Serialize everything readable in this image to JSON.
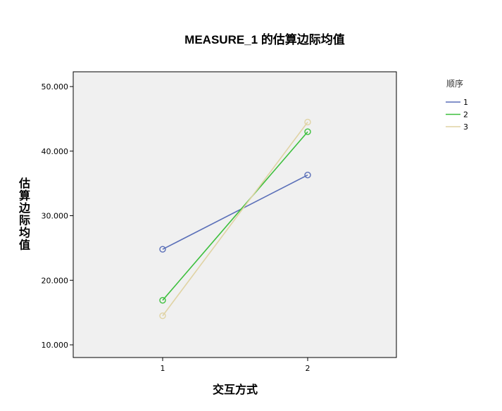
{
  "chart_data": {
    "type": "line",
    "title": "MEASURE_1 的估算边际均值",
    "xlabel": "交互方式",
    "ylabel": "估算边际均值",
    "categories": [
      "1",
      "2"
    ],
    "y_ticks": [
      "10.000",
      "20.000",
      "30.000",
      "40.000",
      "50.000"
    ],
    "ylim": [
      10,
      50
    ],
    "grid": false,
    "plot_background": "#f0f0f0",
    "legend": {
      "title": "顺序",
      "placement": "top-right outside"
    },
    "series": [
      {
        "name": "1",
        "values": [
          24.8,
          36.3
        ],
        "color": "#5a6fb8"
      },
      {
        "name": "2",
        "values": [
          16.9,
          43.0
        ],
        "color": "#3cbf3c"
      },
      {
        "name": "3",
        "values": [
          14.5,
          44.5
        ],
        "color": "#e0d3a4"
      }
    ]
  }
}
